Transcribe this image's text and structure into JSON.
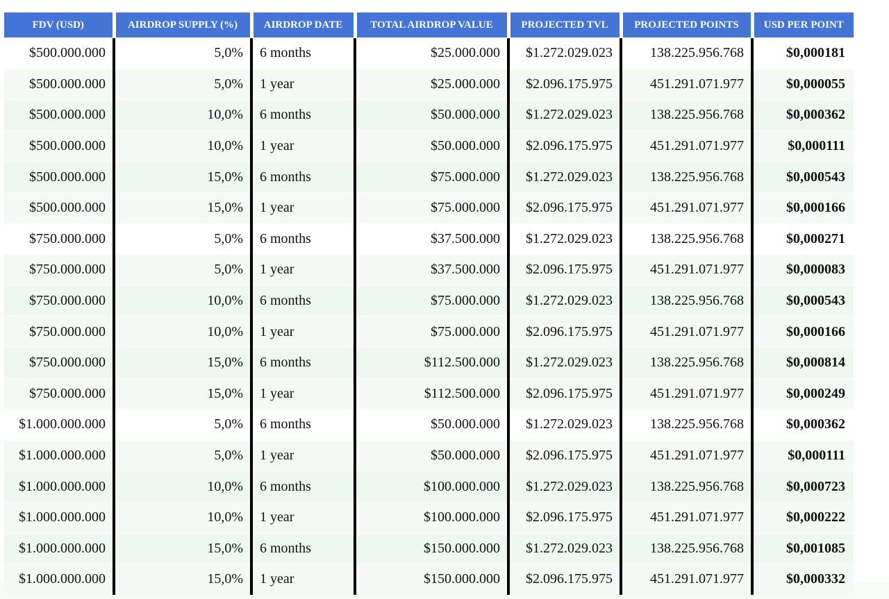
{
  "table": {
    "headers": [
      "FDV (USD)",
      "AIRDROP SUPPLY (%)",
      "AIRDROP DATE",
      "TOTAL AIRDROP VALUE",
      "PROJECTED TVL",
      "PROJECTED POINTS",
      "USD PER POINT"
    ],
    "rows": [
      [
        "$500.000.000",
        "5,0%",
        "6 months",
        "$25.000.000",
        "$1.272.029.023",
        "138.225.956.768",
        "$0,000181"
      ],
      [
        "$500.000.000",
        "5,0%",
        "1 year",
        "$25.000.000",
        "$2.096.175.975",
        "451.291.071.977",
        "$0,000055"
      ],
      [
        "$500.000.000",
        "10,0%",
        "6 months",
        "$50.000.000",
        "$1.272.029.023",
        "138.225.956.768",
        "$0,000362"
      ],
      [
        "$500.000.000",
        "10,0%",
        "1 year",
        "$50.000.000",
        "$2.096.175.975",
        "451.291.071.977",
        "$0,000111"
      ],
      [
        "$500.000.000",
        "15,0%",
        "6 months",
        "$75.000.000",
        "$1.272.029.023",
        "138.225.956.768",
        "$0,000543"
      ],
      [
        "$500.000.000",
        "15,0%",
        "1 year",
        "$75.000.000",
        "$2.096.175.975",
        "451.291.071.977",
        "$0,000166"
      ],
      [
        "$750.000.000",
        "5,0%",
        "6 months",
        "$37.500.000",
        "$1.272.029.023",
        "138.225.956.768",
        "$0,000271"
      ],
      [
        "$750.000.000",
        "5,0%",
        "1 year",
        "$37.500.000",
        "$2.096.175.975",
        "451.291.071.977",
        "$0,000083"
      ],
      [
        "$750.000.000",
        "10,0%",
        "6 months",
        "$75.000.000",
        "$1.272.029.023",
        "138.225.956.768",
        "$0,000543"
      ],
      [
        "$750.000.000",
        "10,0%",
        "1 year",
        "$75.000.000",
        "$2.096.175.975",
        "451.291.071.977",
        "$0,000166"
      ],
      [
        "$750.000.000",
        "15,0%",
        "6 months",
        "$112.500.000",
        "$1.272.029.023",
        "138.225.956.768",
        "$0,000814"
      ],
      [
        "$750.000.000",
        "15,0%",
        "1 year",
        "$112.500.000",
        "$2.096.175.975",
        "451.291.071.977",
        "$0,000249"
      ],
      [
        "$1.000.000.000",
        "5,0%",
        "6 months",
        "$50.000.000",
        "$1.272.029.023",
        "138.225.956.768",
        "$0,000362"
      ],
      [
        "$1.000.000.000",
        "5,0%",
        "1 year",
        "$50.000.000",
        "$2.096.175.975",
        "451.291.071.977",
        "$0,000111"
      ],
      [
        "$1.000.000.000",
        "10,0%",
        "6 months",
        "$100.000.000",
        "$1.272.029.023",
        "138.225.956.768",
        "$0,000723"
      ],
      [
        "$1.000.000.000",
        "10,0%",
        "1 year",
        "$100.000.000",
        "$2.096.175.975",
        "451.291.071.977",
        "$0,000222"
      ],
      [
        "$1.000.000.000",
        "15,0%",
        "6 months",
        "$150.000.000",
        "$1.272.029.023",
        "138.225.956.768",
        "$0,001085"
      ],
      [
        "$1.000.000.000",
        "15,0%",
        "1 year",
        "$150.000.000",
        "$2.096.175.975",
        "451.291.071.977",
        "$0,000332"
      ]
    ]
  },
  "colors": {
    "header_bg": "#4374d6",
    "header_text": "#ffffff",
    "row_alt_bg": "#f4f9f6",
    "row_green_bg": "#eef8f0",
    "divider": "#000000"
  }
}
